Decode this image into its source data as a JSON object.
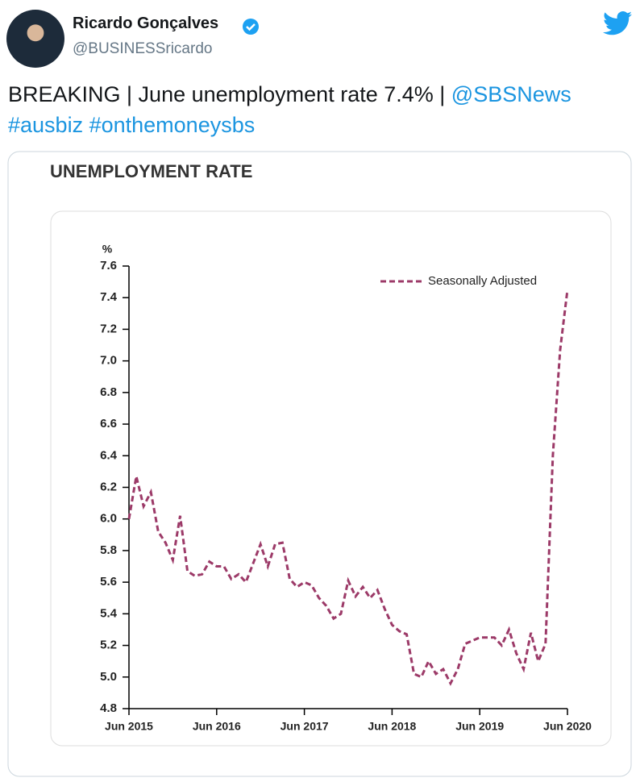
{
  "tweet": {
    "author": "Ricardo Gonçalves",
    "handle": "@BUSINESSricardo",
    "text": "BREAKING | June unemployment rate 7.4% | ",
    "mention": "@SBSNews",
    "hashtags": [
      "#ausbiz",
      "#onthemoneysbs"
    ]
  },
  "chart_data": {
    "type": "line",
    "title": "UNEMPLOYMENT RATE",
    "y_label": "%",
    "categories": [
      "Jun 2015",
      null,
      null,
      null,
      null,
      null,
      null,
      null,
      null,
      null,
      null,
      null,
      "Jun 2016",
      null,
      null,
      null,
      null,
      null,
      null,
      null,
      null,
      null,
      null,
      null,
      "Jun 2017",
      null,
      null,
      null,
      null,
      null,
      null,
      null,
      null,
      null,
      null,
      null,
      "Jun 2018",
      null,
      null,
      null,
      null,
      null,
      null,
      null,
      null,
      null,
      null,
      null,
      "Jun 2019",
      null,
      null,
      null,
      null,
      null,
      null,
      null,
      null,
      null,
      null,
      null,
      "Jun 2020"
    ],
    "series": [
      {
        "name": "Seasonally Adjusted",
        "color": "#9c3a68",
        "values": [
          6.0,
          6.27,
          6.08,
          6.17,
          5.92,
          5.85,
          5.74,
          6.02,
          5.67,
          5.64,
          5.65,
          5.73,
          5.7,
          5.7,
          5.62,
          5.65,
          5.6,
          5.72,
          5.84,
          5.7,
          5.84,
          5.85,
          5.62,
          5.57,
          5.6,
          5.58,
          5.5,
          5.45,
          5.37,
          5.4,
          5.61,
          5.51,
          5.57,
          5.5,
          5.55,
          5.43,
          5.33,
          5.29,
          5.27,
          5.02,
          5.0,
          5.1,
          5.02,
          5.05,
          4.96,
          5.05,
          5.21,
          5.23,
          5.25,
          5.25,
          5.25,
          5.2,
          5.3,
          5.15,
          5.05,
          5.28,
          5.1,
          5.21,
          6.4,
          7.07,
          7.45
        ]
      }
    ],
    "ylim": [
      4.8,
      7.6
    ],
    "yticks": [
      4.8,
      {
        "value": 5,
        "label": "5.0"
      },
      5.2,
      5.4,
      5.6,
      5.8,
      {
        "value": 6,
        "label": "6.0"
      },
      6.2,
      6.4,
      6.6,
      6.8,
      {
        "value": 7,
        "label": "7.0"
      },
      7.2,
      7.4,
      7.6
    ],
    "dashed": true,
    "legend": "top-right"
  }
}
